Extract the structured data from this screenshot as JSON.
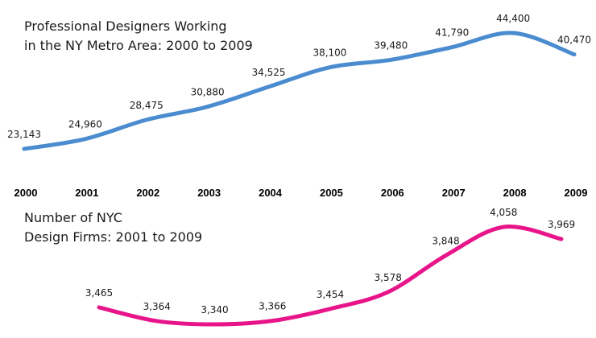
{
  "chart_data": [
    {
      "type": "line",
      "title": [
        "Professional Designers Working",
        "in the NY Metro Area: 2000 to 2009"
      ],
      "x": [
        "2000",
        "2001",
        "2002",
        "2003",
        "2004",
        "2005",
        "2006",
        "2007",
        "2008",
        "2009"
      ],
      "values": [
        23143,
        24960,
        28475,
        30880,
        34525,
        38100,
        39480,
        41790,
        44400,
        40470
      ],
      "labels": [
        "23,143",
        "24,960",
        "28,475",
        "30,880",
        "34,525",
        "38,100",
        "39,480",
        "41,790",
        "44,400",
        "40,470"
      ],
      "color": "#4a8ccf",
      "xlabel": "",
      "ylabel": "",
      "grid": false
    },
    {
      "type": "line",
      "title": [
        "Number of NYC",
        "Design Firms: 2001 to 2009"
      ],
      "x": [
        "2001",
        "2002",
        "2003",
        "2004",
        "2005",
        "2006",
        "2007",
        "2008",
        "2009"
      ],
      "values": [
        3465,
        3364,
        3340,
        3366,
        3454,
        3578,
        3848,
        4058,
        3969
      ],
      "labels": [
        "3,465",
        "3,364",
        "3,340",
        "3,366",
        "3,454",
        "3,578",
        "3,848",
        "4,058",
        "3,969"
      ],
      "color": "#e8158a",
      "xlabel": "",
      "ylabel": "",
      "grid": false
    }
  ]
}
